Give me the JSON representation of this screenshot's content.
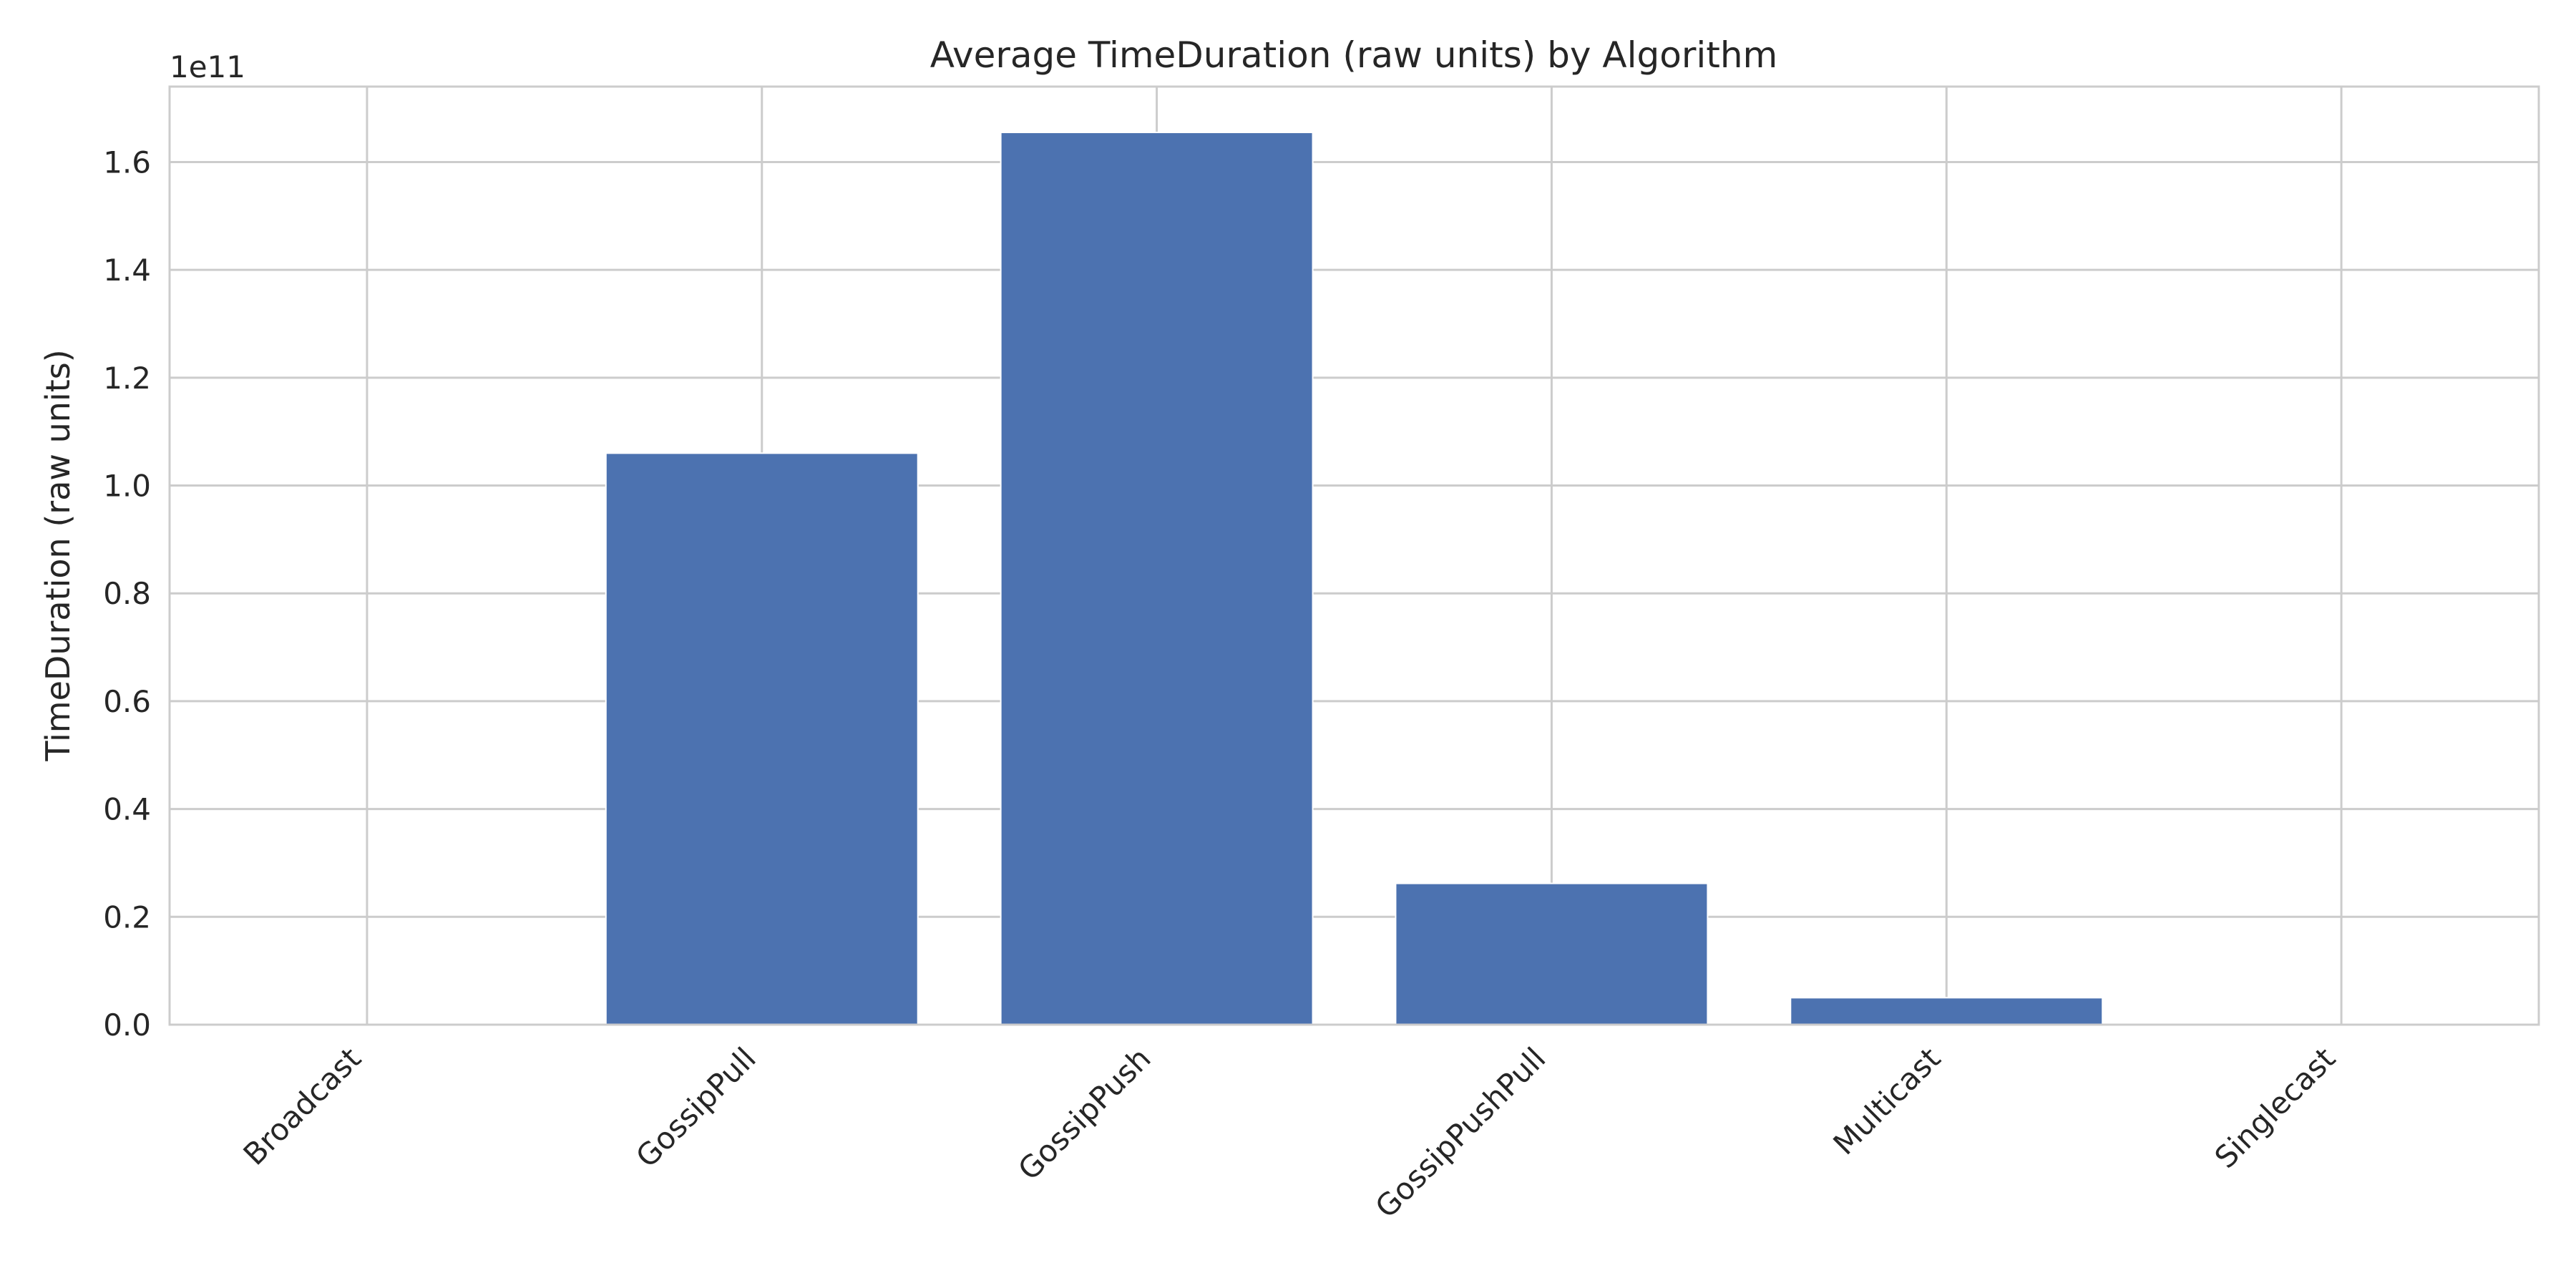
{
  "chart_data": {
    "type": "bar",
    "title": "Average TimeDuration (raw units) by Algorithm",
    "xlabel": "",
    "ylabel": "TimeDuration (raw units)",
    "y_offset_label": "1e11",
    "categories": [
      "Broadcast",
      "GossipPull",
      "GossipPush",
      "GossipPushPull",
      "Multicast",
      "Singlecast"
    ],
    "values": [
      0,
      106000000000,
      165500000000,
      26200000000,
      5000000000,
      0
    ],
    "ylim": [
      0,
      174000000000
    ],
    "yticks": [
      0,
      20000000000,
      40000000000,
      60000000000,
      80000000000,
      100000000000,
      120000000000,
      140000000000,
      160000000000
    ],
    "ytick_labels": [
      "0.0",
      "0.2",
      "0.4",
      "0.6",
      "0.8",
      "1.0",
      "1.2",
      "1.4",
      "1.6"
    ],
    "grid": true,
    "bar_color": "#4c72b0",
    "grid_color": "#cccccc",
    "background_color": "#ffffff"
  }
}
